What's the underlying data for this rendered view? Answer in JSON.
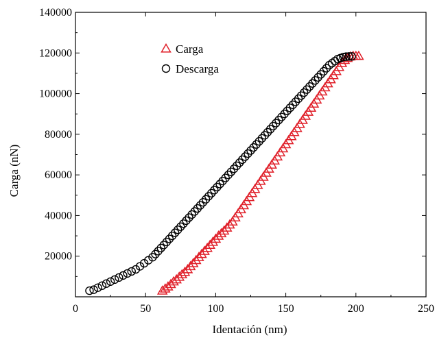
{
  "chart_data": {
    "type": "scatter",
    "xlabel": "Identación (nm)",
    "ylabel": "Carga (nN)",
    "xlim": [
      0,
      250
    ],
    "ylim": [
      0,
      140000
    ],
    "xticks": [
      0,
      50,
      100,
      150,
      200,
      250
    ],
    "yticks": [
      20000,
      40000,
      60000,
      80000,
      100000,
      120000,
      140000
    ],
    "grid": false,
    "legend_position": "top-left",
    "series": [
      {
        "name": "Carga",
        "marker": "triangle",
        "color": "#e0202a",
        "x": [
          62,
          64,
          66,
          68,
          70,
          72,
          74,
          76,
          78,
          80,
          82,
          84,
          86,
          88,
          90,
          92,
          94,
          96,
          98,
          100,
          102,
          104,
          106,
          108,
          110,
          112,
          114,
          116,
          118,
          120,
          122,
          124,
          126,
          128,
          130,
          132,
          134,
          136,
          138,
          140,
          142,
          144,
          146,
          148,
          150,
          152,
          154,
          156,
          158,
          160,
          162,
          164,
          166,
          168,
          170,
          172,
          174,
          176,
          178,
          180,
          182,
          184,
          186,
          188,
          190,
          192,
          194,
          196,
          198,
          200,
          202
        ],
        "y": [
          3000,
          4000,
          5000,
          6200,
          7500,
          8500,
          9800,
          11000,
          12200,
          13500,
          15000,
          16500,
          18000,
          19500,
          21000,
          22500,
          24000,
          25500,
          27000,
          28500,
          30000,
          31200,
          32500,
          34000,
          35500,
          37000,
          39000,
          41000,
          43000,
          45000,
          47000,
          49000,
          51000,
          53000,
          55000,
          57000,
          59000,
          61000,
          63000,
          65000,
          67000,
          69000,
          71000,
          73000,
          75000,
          77000,
          79000,
          81000,
          83000,
          85000,
          87000,
          89000,
          91000,
          93000,
          95000,
          97000,
          99000,
          101000,
          103000,
          105000,
          107000,
          109000,
          111000,
          113000,
          115000,
          116500,
          117500,
          118200,
          118500,
          118500,
          118500
        ]
      },
      {
        "name": "Descarga",
        "marker": "circle",
        "color": "#000000",
        "x": [
          10,
          13,
          16,
          19,
          22,
          25,
          28,
          31,
          34,
          37,
          40,
          43,
          46,
          49,
          52,
          55,
          57,
          59,
          61,
          63,
          65,
          67,
          69,
          71,
          73,
          75,
          77,
          79,
          81,
          83,
          85,
          87,
          89,
          91,
          93,
          95,
          97,
          99,
          101,
          103,
          105,
          107,
          109,
          111,
          113,
          115,
          117,
          119,
          121,
          123,
          125,
          127,
          129,
          131,
          133,
          135,
          137,
          139,
          141,
          143,
          145,
          147,
          149,
          151,
          153,
          155,
          157,
          159,
          161,
          163,
          165,
          167,
          169,
          171,
          173,
          175,
          177,
          179,
          181,
          183,
          185,
          187,
          189,
          191,
          193,
          195,
          197
        ],
        "y": [
          3000,
          3500,
          4500,
          5500,
          6500,
          7500,
          8500,
          9500,
          10500,
          11500,
          12500,
          13500,
          15000,
          16500,
          18000,
          19500,
          21000,
          22500,
          24000,
          25500,
          27000,
          28500,
          30000,
          31500,
          33000,
          34500,
          36000,
          37500,
          39000,
          40500,
          42000,
          43500,
          45000,
          46500,
          48000,
          49500,
          51000,
          52500,
          54000,
          55500,
          57000,
          58500,
          60000,
          61500,
          63000,
          64500,
          66000,
          67500,
          69000,
          70500,
          72000,
          73500,
          75000,
          76500,
          78000,
          79500,
          81000,
          82500,
          84000,
          85500,
          87000,
          88500,
          90000,
          91500,
          93000,
          94500,
          96000,
          97500,
          99000,
          100500,
          102000,
          103500,
          105000,
          106500,
          108000,
          109500,
          111000,
          112500,
          114000,
          115000,
          116000,
          117000,
          117500,
          118000,
          118200,
          118300,
          118300
        ]
      }
    ]
  }
}
